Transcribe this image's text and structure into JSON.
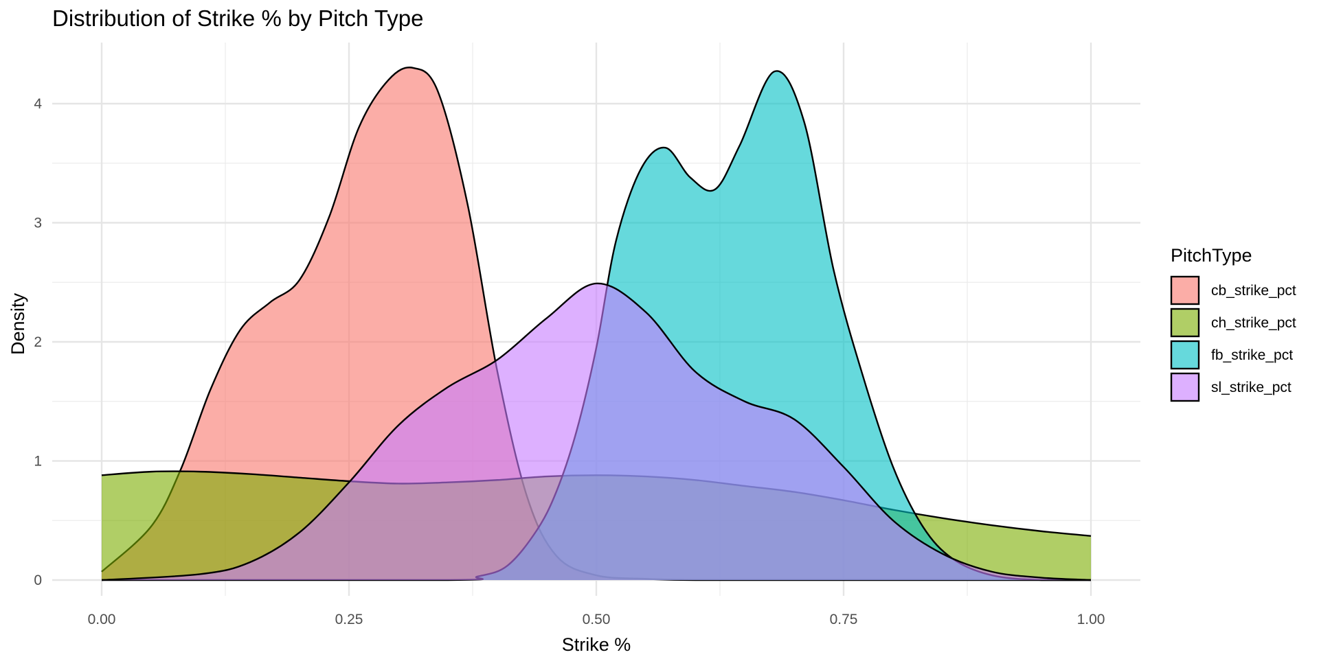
{
  "chart_data": {
    "type": "area",
    "subtype": "density",
    "title": "Distribution of Strike % by Pitch Type",
    "xlabel": "Strike %",
    "ylabel": "Density",
    "xlim": [
      -0.1,
      1.1
    ],
    "ylim": [
      0,
      4.5
    ],
    "x_ticks": [
      0.0,
      0.25,
      0.5,
      0.75,
      1.0
    ],
    "x_tick_labels": [
      "0.00",
      "0.25",
      "0.50",
      "0.75",
      "1.00"
    ],
    "y_ticks": [
      0,
      1,
      2,
      3,
      4
    ],
    "y_tick_labels": [
      "0",
      "1",
      "2",
      "3",
      "4"
    ],
    "grid": true,
    "legend_title": "PitchType",
    "legend_position": "right",
    "fill_opacity": 0.6,
    "series": [
      {
        "name": "cb_strike_pct",
        "color": "#F8766D",
        "x": [
          0.0,
          0.05,
          0.08,
          0.11,
          0.14,
          0.17,
          0.2,
          0.23,
          0.26,
          0.29,
          0.315,
          0.34,
          0.37,
          0.4,
          0.43,
          0.46,
          0.5,
          0.55,
          0.6,
          0.7,
          1.0
        ],
        "y": [
          0.07,
          0.45,
          0.93,
          1.6,
          2.1,
          2.33,
          2.52,
          3.05,
          3.8,
          4.2,
          4.3,
          4.1,
          3.15,
          1.75,
          0.7,
          0.2,
          0.04,
          0.01,
          0.0,
          0.0,
          0.0
        ]
      },
      {
        "name": "ch_strike_pct",
        "color": "#7CAE00",
        "x": [
          0.0,
          0.05,
          0.1,
          0.15,
          0.2,
          0.25,
          0.3,
          0.35,
          0.4,
          0.45,
          0.5,
          0.55,
          0.6,
          0.65,
          0.7,
          0.75,
          0.8,
          0.85,
          0.9,
          0.95,
          1.0
        ],
        "y": [
          0.88,
          0.91,
          0.91,
          0.89,
          0.86,
          0.83,
          0.81,
          0.82,
          0.84,
          0.87,
          0.88,
          0.87,
          0.84,
          0.79,
          0.74,
          0.67,
          0.59,
          0.52,
          0.46,
          0.41,
          0.37
        ]
      },
      {
        "name": "fb_strike_pct",
        "color": "#00BFC4",
        "x": [
          0.0,
          0.35,
          0.38,
          0.41,
          0.44,
          0.46,
          0.48,
          0.5,
          0.52,
          0.545,
          0.57,
          0.595,
          0.62,
          0.645,
          0.68,
          0.71,
          0.74,
          0.77,
          0.8,
          0.83,
          0.86,
          0.9,
          0.95,
          1.0
        ],
        "y": [
          0.0,
          0.0,
          0.03,
          0.12,
          0.42,
          0.75,
          1.25,
          1.95,
          2.85,
          3.45,
          3.63,
          3.38,
          3.28,
          3.65,
          4.27,
          3.85,
          2.6,
          1.7,
          0.95,
          0.45,
          0.18,
          0.04,
          0.0,
          0.0
        ]
      },
      {
        "name": "sl_strike_pct",
        "color": "#C77CFF",
        "x": [
          0.0,
          0.1,
          0.15,
          0.2,
          0.25,
          0.3,
          0.35,
          0.4,
          0.45,
          0.5,
          0.55,
          0.6,
          0.65,
          0.7,
          0.75,
          0.8,
          0.85,
          0.9,
          0.95,
          1.0
        ],
        "y": [
          0.0,
          0.05,
          0.15,
          0.4,
          0.82,
          1.3,
          1.62,
          1.85,
          2.2,
          2.49,
          2.25,
          1.75,
          1.5,
          1.35,
          0.95,
          0.5,
          0.22,
          0.07,
          0.02,
          0.0
        ]
      }
    ]
  }
}
